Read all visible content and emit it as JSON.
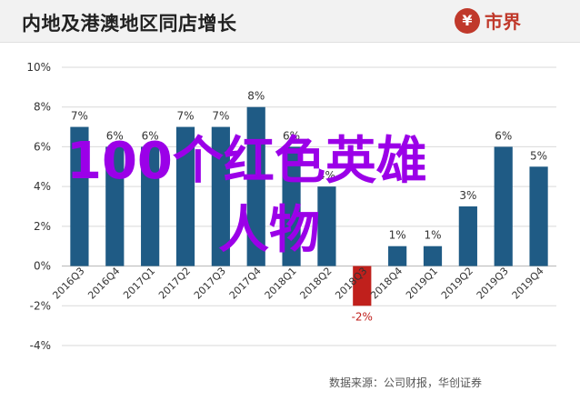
{
  "header": {
    "title": "内地及港澳地区同店增长",
    "logo_icon": "¥",
    "logo_text": "市界"
  },
  "source": "数据来源：公司财报，华创证券",
  "watermark": {
    "line1": "100个红色英雄",
    "line2": "人物"
  },
  "chart_data": {
    "type": "bar",
    "categories": [
      "2016Q3",
      "2016Q4",
      "2017Q1",
      "2017Q2",
      "2017Q3",
      "2017Q4",
      "2018Q1",
      "2018Q2",
      "2018Q3",
      "2018Q4",
      "2019Q1",
      "2019Q2",
      "2019Q3",
      "2019Q4"
    ],
    "values": [
      7,
      6,
      6,
      7,
      7,
      8,
      6,
      4,
      -2,
      1,
      1,
      3,
      6,
      5
    ],
    "data_labels": [
      "7%",
      "6%",
      "6%",
      "7%",
      "7%",
      "8%",
      "6%",
      "4%",
      "-2%",
      "1%",
      "1%",
      "3%",
      "6%",
      "5%"
    ],
    "yticks": [
      "10%",
      "8%",
      "6%",
      "4%",
      "2%",
      "0%",
      "-2%",
      "-4%"
    ],
    "ylim": [
      -4,
      10
    ],
    "grid": true,
    "colors": {
      "positive": "#1f5b85",
      "negative": "#c0201c",
      "grid": "#d9d9d9",
      "text": "#333333"
    }
  }
}
